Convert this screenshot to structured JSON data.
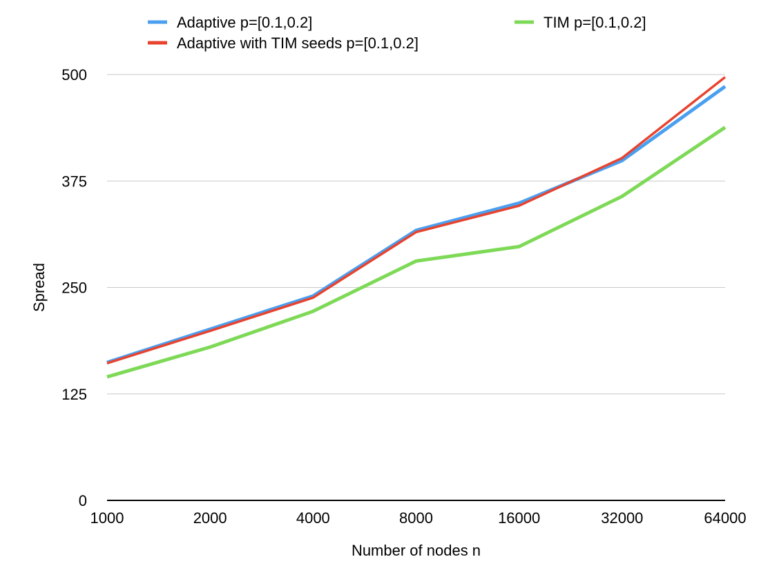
{
  "chart_data": {
    "type": "line",
    "xlabel": "Number of nodes n",
    "ylabel": "Spread",
    "categories": [
      "1000",
      "2000",
      "4000",
      "8000",
      "16000",
      "32000",
      "64000"
    ],
    "ylim": [
      0,
      500
    ],
    "yticks": [
      0,
      125,
      250,
      375,
      500
    ],
    "grid": true,
    "legend_position": "top",
    "series": [
      {
        "name": "Adaptive p=[0.1,0.2]",
        "color": "#4A9FEF",
        "values": [
          162,
          201,
          240,
          317,
          349,
          399,
          486
        ]
      },
      {
        "name": "Adaptive with TIM seeds p=[0.1,0.2]",
        "color": "#E8432E",
        "values": [
          161,
          199,
          238,
          315,
          346,
          402,
          497
        ]
      },
      {
        "name": "TIM p=[0.1,0.2]",
        "color": "#7ED957",
        "values": [
          145,
          180,
          222,
          281,
          298,
          357,
          438
        ]
      }
    ]
  }
}
